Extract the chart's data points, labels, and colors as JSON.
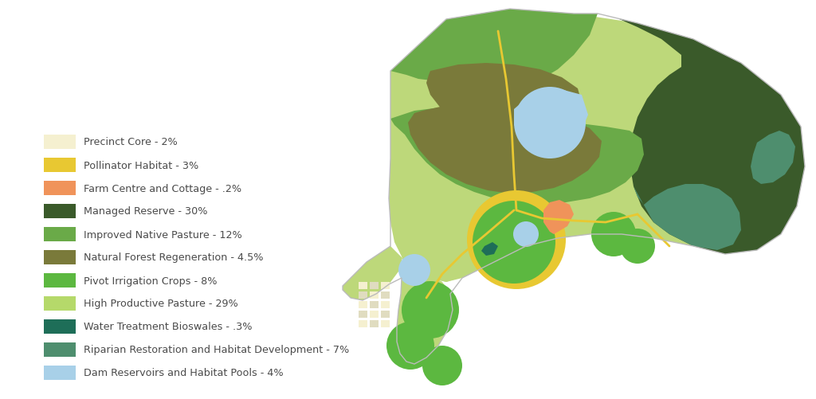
{
  "legend_items": [
    {
      "label": "Precinct Core - 2%",
      "color": "#f5f0d0"
    },
    {
      "label": "Pollinator Habitat - 3%",
      "color": "#e8c832"
    },
    {
      "label": "Farm Centre and Cottage - .2%",
      "color": "#f0935a"
    },
    {
      "label": "Managed Reserve - 30%",
      "color": "#3a5a2a"
    },
    {
      "label": "Improved Native Pasture - 12%",
      "color": "#6aaa48"
    },
    {
      "label": "Natural Forest Regeneration - 4.5%",
      "color": "#7a7a3a"
    },
    {
      "label": "Pivot Irrigation Crops - 8%",
      "color": "#5cb840"
    },
    {
      "label": "High Productive Pasture - 29%",
      "color": "#b5d96a"
    },
    {
      "label": "Water Treatment Bioswales - .3%",
      "color": "#1e6e58"
    },
    {
      "label": "Riparian Restoration and Habitat Development - 7%",
      "color": "#4e8e6e"
    },
    {
      "label": "Dam Reservoirs and Habitat Pools - 4%",
      "color": "#a8d0e8"
    }
  ],
  "background_color": "#ffffff",
  "text_color": "#4a4a4a",
  "font_size": 9.2,
  "map_colors": {
    "light_green": "#bdd87a",
    "medium_green": "#6aaa48",
    "dark_green": "#3a5a2a",
    "olive": "#7a7a3a",
    "bright_green": "#5cb840",
    "yellow": "#e8c832",
    "orange": "#f0935a",
    "blue": "#a8d0e8",
    "teal": "#4e8e6e",
    "dark_teal": "#1e6e58",
    "cream": "#f5f0d0",
    "gray_border": "#bbbbbb"
  }
}
